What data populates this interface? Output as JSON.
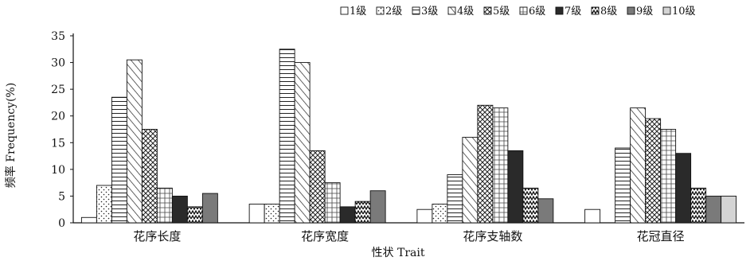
{
  "chart_data": {
    "type": "bar",
    "categories": [
      "花序长度",
      "花序宽度",
      "花序支轴数",
      "花冠直径"
    ],
    "series": [
      {
        "name": "1级",
        "pattern": "white",
        "values": [
          1.0,
          3.5,
          2.5,
          2.5
        ]
      },
      {
        "name": "2级",
        "pattern": "dots",
        "values": [
          7.0,
          3.5,
          3.5,
          0.0
        ]
      },
      {
        "name": "3级",
        "pattern": "hlines",
        "values": [
          23.5,
          32.5,
          9.0,
          14.0
        ]
      },
      {
        "name": "4级",
        "pattern": "diagonal",
        "values": [
          30.5,
          30.0,
          16.0,
          21.5
        ]
      },
      {
        "name": "5级",
        "pattern": "crosshatch",
        "values": [
          17.5,
          13.5,
          22.0,
          19.5
        ]
      },
      {
        "name": "6级",
        "pattern": "grid",
        "values": [
          6.5,
          7.5,
          21.5,
          17.5
        ]
      },
      {
        "name": "7级",
        "pattern": "dark",
        "values": [
          5.0,
          3.0,
          13.5,
          13.0
        ]
      },
      {
        "name": "8级",
        "pattern": "zigzag",
        "values": [
          3.0,
          4.0,
          6.5,
          6.5
        ]
      },
      {
        "name": "9级",
        "pattern": "darkgray",
        "values": [
          5.5,
          6.0,
          4.5,
          5.0
        ]
      },
      {
        "name": "10级",
        "pattern": "lightgray",
        "values": [
          0.0,
          0.0,
          0.0,
          5.0
        ]
      }
    ],
    "xlabel": "性状 Trait",
    "ylabel": "频率 Frequency(%)",
    "ylim": [
      0,
      35
    ],
    "yticks": [
      0,
      5,
      10,
      15,
      20,
      25,
      30,
      35
    ],
    "legend_position": "top-right",
    "grid": false
  }
}
